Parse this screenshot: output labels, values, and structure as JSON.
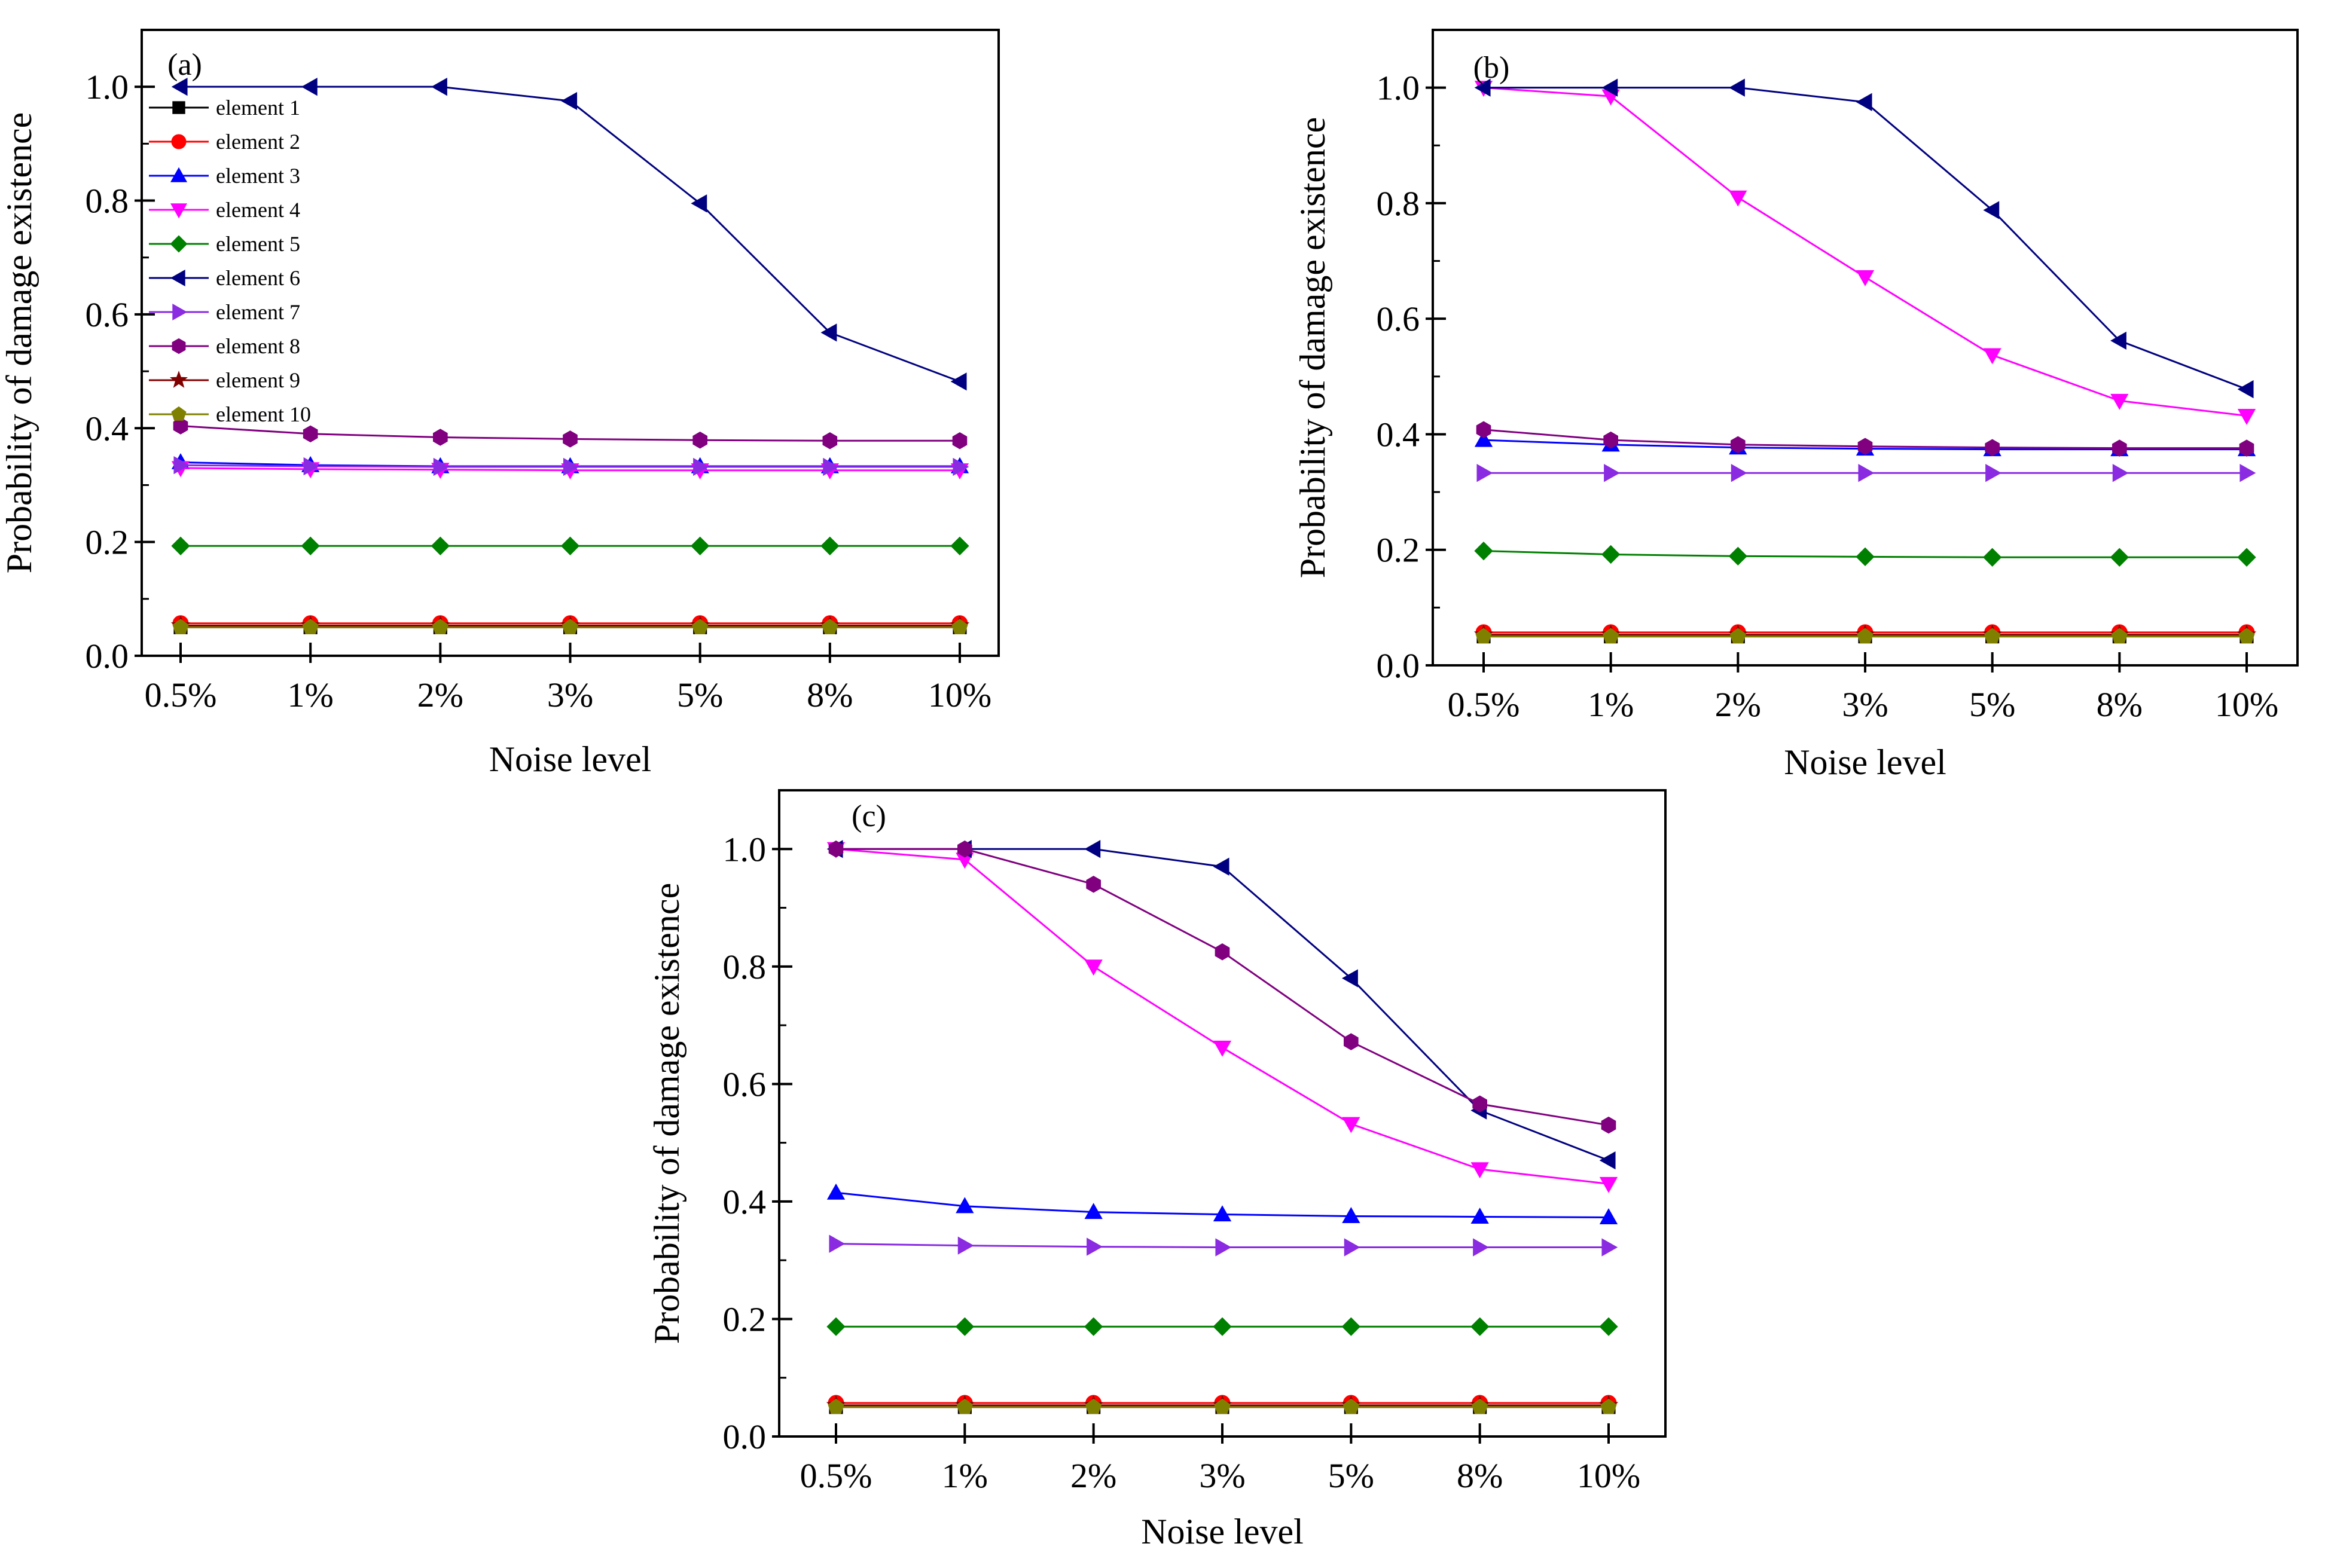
{
  "figure": {
    "series_defs": [
      {
        "name": "element 1",
        "color": "#000000",
        "marker": "square"
      },
      {
        "name": "element 2",
        "color": "#ff0000",
        "marker": "circle"
      },
      {
        "name": "element 3",
        "color": "#0000ff",
        "marker": "triangle-up"
      },
      {
        "name": "element 4",
        "color": "#ff00ff",
        "marker": "triangle-down"
      },
      {
        "name": "element 5",
        "color": "#008000",
        "marker": "diamond"
      },
      {
        "name": "element 6",
        "color": "#000080",
        "marker": "triangle-left"
      },
      {
        "name": "element 7",
        "color": "#8a2be2",
        "marker": "triangle-right"
      },
      {
        "name": "element 8",
        "color": "#800080",
        "marker": "hexagon"
      },
      {
        "name": "element 9",
        "color": "#800000",
        "marker": "star"
      },
      {
        "name": "element 10",
        "color": "#808000",
        "marker": "pentagon"
      }
    ]
  },
  "chart_data": [
    {
      "type": "line",
      "panel_label": "(a)",
      "xlabel": "Noise level",
      "ylabel": "Probability of damage existence",
      "categories": [
        "0.5%",
        "1%",
        "2%",
        "3%",
        "5%",
        "8%",
        "10%"
      ],
      "ylim": [
        0,
        1.1
      ],
      "yticks": [
        "0.0",
        "0.2",
        "0.4",
        "0.6",
        "0.8",
        "1.0"
      ],
      "legend": "top-left",
      "series": [
        {
          "name": "element 1",
          "values": [
            0.05,
            0.05,
            0.05,
            0.05,
            0.05,
            0.05,
            0.05
          ]
        },
        {
          "name": "element 2",
          "values": [
            0.057,
            0.057,
            0.057,
            0.057,
            0.057,
            0.057,
            0.057
          ]
        },
        {
          "name": "element 3",
          "values": [
            0.34,
            0.335,
            0.333,
            0.333,
            0.333,
            0.333,
            0.333
          ]
        },
        {
          "name": "element 4",
          "values": [
            0.33,
            0.328,
            0.327,
            0.326,
            0.326,
            0.326,
            0.326
          ]
        },
        {
          "name": "element 5",
          "values": [
            0.193,
            0.193,
            0.193,
            0.193,
            0.193,
            0.193,
            0.193
          ]
        },
        {
          "name": "element 6",
          "values": [
            1.0,
            1.0,
            1.0,
            0.975,
            0.795,
            0.568,
            0.482
          ]
        },
        {
          "name": "element 7",
          "values": [
            0.335,
            0.333,
            0.332,
            0.332,
            0.332,
            0.332,
            0.332
          ]
        },
        {
          "name": "element 8",
          "values": [
            0.404,
            0.39,
            0.384,
            0.381,
            0.379,
            0.378,
            0.378
          ]
        },
        {
          "name": "element 9",
          "values": [
            0.053,
            0.053,
            0.053,
            0.053,
            0.053,
            0.053,
            0.053
          ]
        },
        {
          "name": "element 10",
          "values": [
            0.05,
            0.05,
            0.05,
            0.05,
            0.05,
            0.05,
            0.05
          ]
        }
      ]
    },
    {
      "type": "line",
      "panel_label": "(b)",
      "xlabel": "Noise level",
      "ylabel": "Probability of damage existence",
      "categories": [
        "0.5%",
        "1%",
        "2%",
        "3%",
        "5%",
        "8%",
        "10%"
      ],
      "ylim": [
        0,
        1.1
      ],
      "yticks": [
        "0.0",
        "0.2",
        "0.4",
        "0.6",
        "0.8",
        "1.0"
      ],
      "series": [
        {
          "name": "element 1",
          "values": [
            0.05,
            0.05,
            0.05,
            0.05,
            0.05,
            0.05,
            0.05
          ]
        },
        {
          "name": "element 2",
          "values": [
            0.057,
            0.057,
            0.057,
            0.057,
            0.057,
            0.057,
            0.057
          ]
        },
        {
          "name": "element 3",
          "values": [
            0.39,
            0.382,
            0.377,
            0.375,
            0.374,
            0.374,
            0.374
          ]
        },
        {
          "name": "element 4",
          "values": [
            1.0,
            0.985,
            0.81,
            0.672,
            0.537,
            0.458,
            0.432
          ]
        },
        {
          "name": "element 5",
          "values": [
            0.198,
            0.192,
            0.189,
            0.188,
            0.187,
            0.187,
            0.187
          ]
        },
        {
          "name": "element 6",
          "values": [
            1.0,
            1.0,
            1.0,
            0.975,
            0.788,
            0.562,
            0.478
          ]
        },
        {
          "name": "element 7",
          "values": [
            0.333,
            0.333,
            0.333,
            0.333,
            0.333,
            0.333,
            0.333
          ]
        },
        {
          "name": "element 8",
          "values": [
            0.408,
            0.39,
            0.382,
            0.379,
            0.377,
            0.376,
            0.376
          ]
        },
        {
          "name": "element 9",
          "values": [
            0.053,
            0.053,
            0.053,
            0.053,
            0.053,
            0.053,
            0.053
          ]
        },
        {
          "name": "element 10",
          "values": [
            0.05,
            0.05,
            0.05,
            0.05,
            0.05,
            0.05,
            0.05
          ]
        }
      ]
    },
    {
      "type": "line",
      "panel_label": "(c)",
      "xlabel": "Noise level",
      "ylabel": "Probability of damage existence",
      "categories": [
        "0.5%",
        "1%",
        "2%",
        "3%",
        "5%",
        "8%",
        "10%"
      ],
      "ylim": [
        0,
        1.1
      ],
      "yticks": [
        "0.0",
        "0.2",
        "0.4",
        "0.6",
        "0.8",
        "1.0"
      ],
      "series": [
        {
          "name": "element 1",
          "values": [
            0.05,
            0.05,
            0.05,
            0.05,
            0.05,
            0.05,
            0.05
          ]
        },
        {
          "name": "element 2",
          "values": [
            0.057,
            0.057,
            0.057,
            0.057,
            0.057,
            0.057,
            0.057
          ]
        },
        {
          "name": "element 3",
          "values": [
            0.415,
            0.392,
            0.382,
            0.378,
            0.375,
            0.374,
            0.373
          ]
        },
        {
          "name": "element 4",
          "values": [
            1.0,
            0.982,
            0.8,
            0.662,
            0.532,
            0.455,
            0.43
          ]
        },
        {
          "name": "element 5",
          "values": [
            0.187,
            0.187,
            0.187,
            0.187,
            0.187,
            0.187,
            0.187
          ]
        },
        {
          "name": "element 6",
          "values": [
            1.0,
            1.0,
            1.0,
            0.97,
            0.78,
            0.555,
            0.47
          ]
        },
        {
          "name": "element 7",
          "values": [
            0.328,
            0.325,
            0.323,
            0.322,
            0.322,
            0.322,
            0.322
          ]
        },
        {
          "name": "element 8",
          "values": [
            1.0,
            1.0,
            0.94,
            0.825,
            0.672,
            0.566,
            0.53
          ]
        },
        {
          "name": "element 9",
          "values": [
            0.053,
            0.053,
            0.053,
            0.053,
            0.053,
            0.053,
            0.053
          ]
        },
        {
          "name": "element 10",
          "values": [
            0.05,
            0.05,
            0.05,
            0.05,
            0.05,
            0.05,
            0.05
          ]
        }
      ]
    }
  ]
}
